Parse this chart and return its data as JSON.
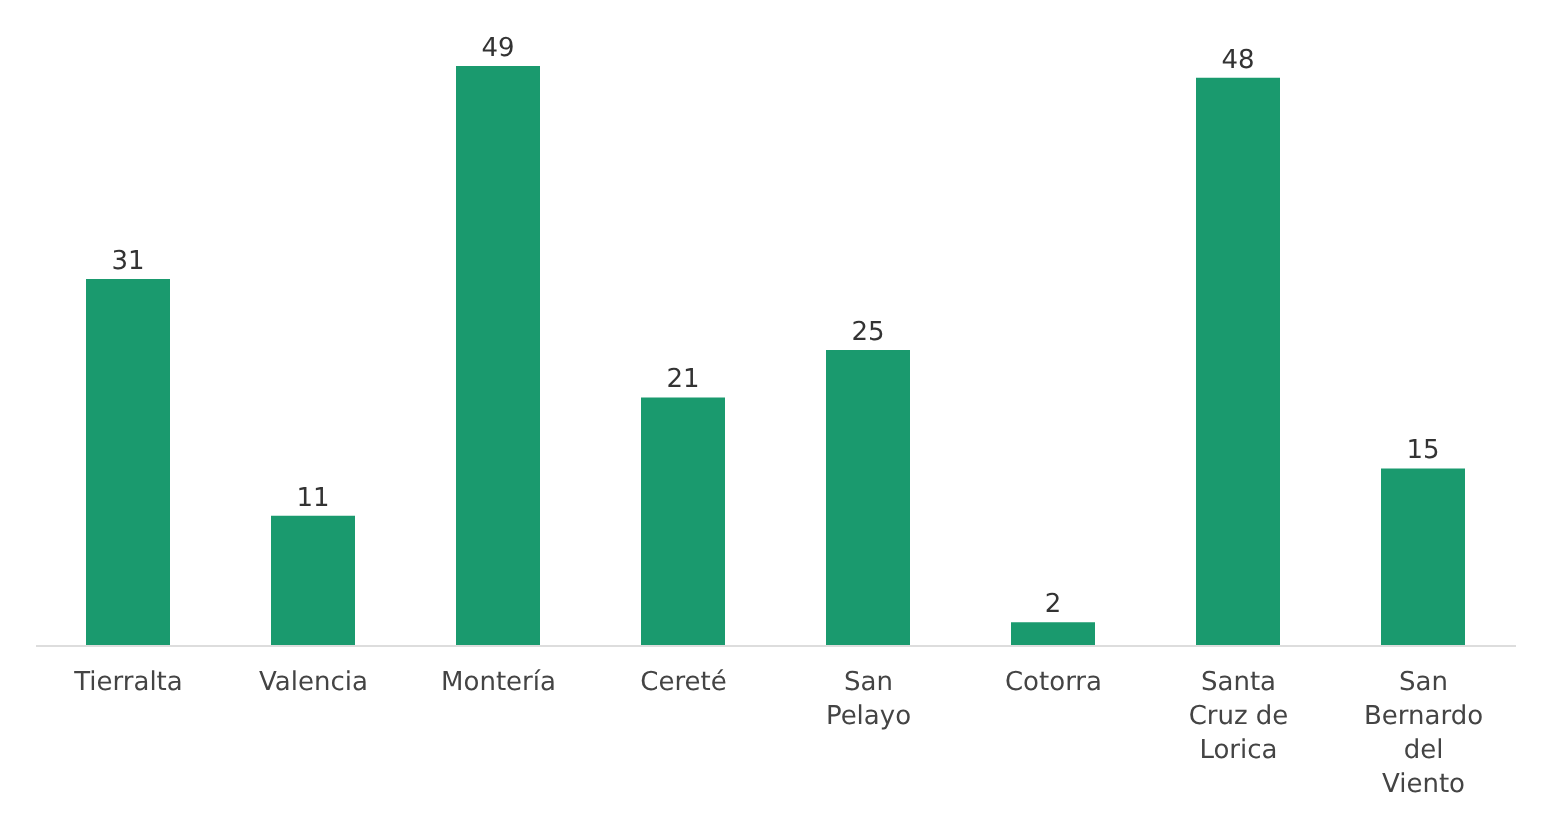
{
  "chart_data": {
    "type": "bar",
    "categories": [
      "Tierralta",
      "Valencia",
      "Montería",
      "Cereté",
      "San Pelayo",
      "Cotorra",
      "Santa Cruz de Lorica",
      "San Bernardo del Viento"
    ],
    "values": [
      31,
      11,
      49,
      21,
      25,
      2,
      48,
      15
    ],
    "color": "#1a9a6e",
    "data_labels": true,
    "grid": false,
    "legend": false
  }
}
